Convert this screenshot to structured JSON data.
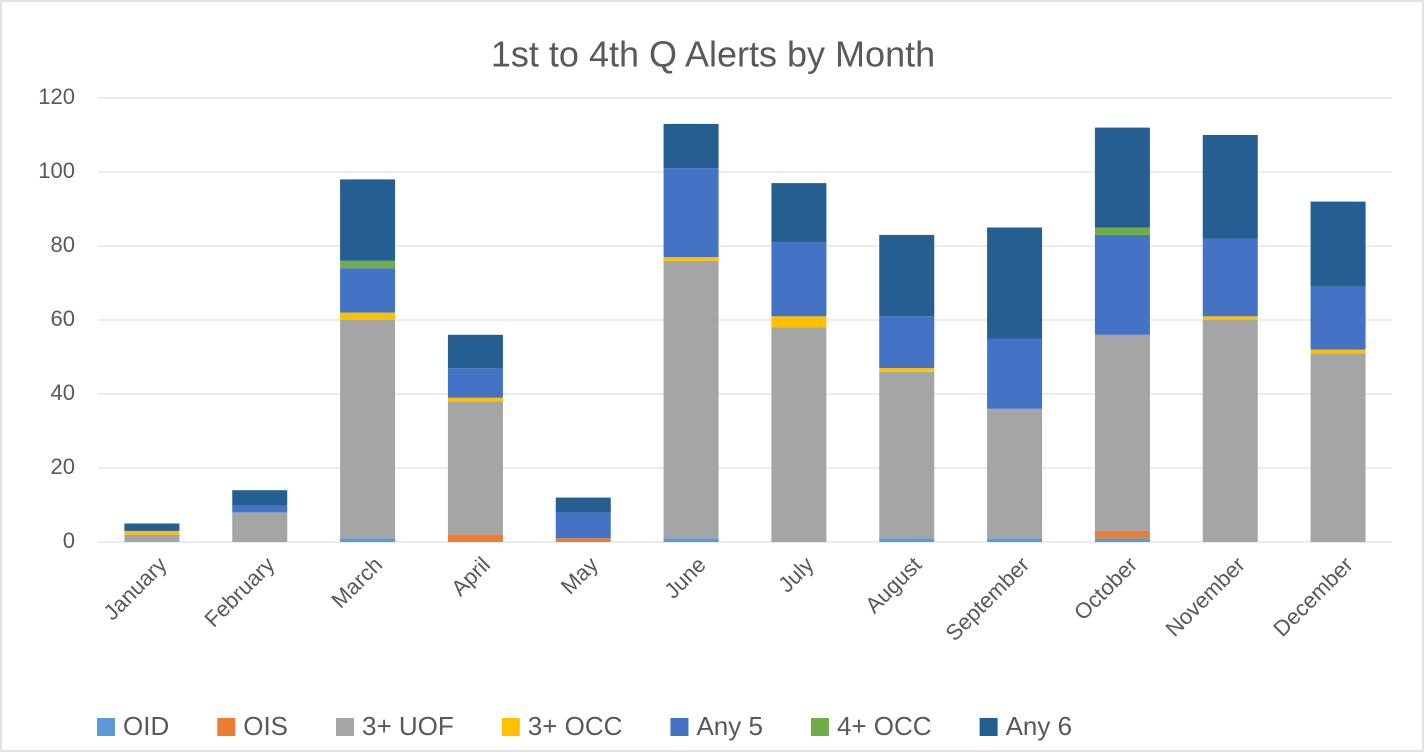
{
  "chart_data": {
    "type": "stacked_bar",
    "title": "1st to 4th Q Alerts by Month",
    "categories": [
      "January",
      "February",
      "March",
      "April",
      "May",
      "June",
      "July",
      "August",
      "September",
      "October",
      "November",
      "December"
    ],
    "series": [
      {
        "name": "OID",
        "color": "#5b9bd5",
        "values": [
          0,
          0,
          1,
          0,
          0,
          1,
          0,
          1,
          1,
          1,
          0,
          0
        ]
      },
      {
        "name": "OIS",
        "color": "#ed7d31",
        "values": [
          0,
          0,
          0,
          2,
          1,
          0,
          0,
          0,
          0,
          2,
          0,
          0
        ]
      },
      {
        "name": "3+ UOF",
        "color": "#a5a5a5",
        "values": [
          2,
          8,
          59,
          36,
          0,
          75,
          58,
          45,
          35,
          53,
          60,
          51
        ]
      },
      {
        "name": "3+ OCC",
        "color": "#ffc000",
        "values": [
          1,
          0,
          2,
          1,
          0,
          1,
          3,
          1,
          0,
          0,
          1,
          1
        ]
      },
      {
        "name": "Any 5",
        "color": "#4472c4",
        "values": [
          0,
          2,
          12,
          8,
          7,
          24,
          20,
          14,
          19,
          27,
          21,
          17
        ]
      },
      {
        "name": "4+ OCC",
        "color": "#70ad47",
        "values": [
          0,
          0,
          2,
          0,
          0,
          0,
          0,
          0,
          0,
          2,
          0,
          0
        ]
      },
      {
        "name": "Any 6",
        "color": "#255e91",
        "values": [
          2,
          4,
          22,
          9,
          4,
          12,
          16,
          22,
          30,
          27,
          28,
          23
        ]
      }
    ],
    "ylim": [
      0,
      120
    ],
    "yticks": [
      0,
      20,
      40,
      60,
      80,
      100,
      120
    ],
    "grid": true,
    "legend": "bottom"
  }
}
